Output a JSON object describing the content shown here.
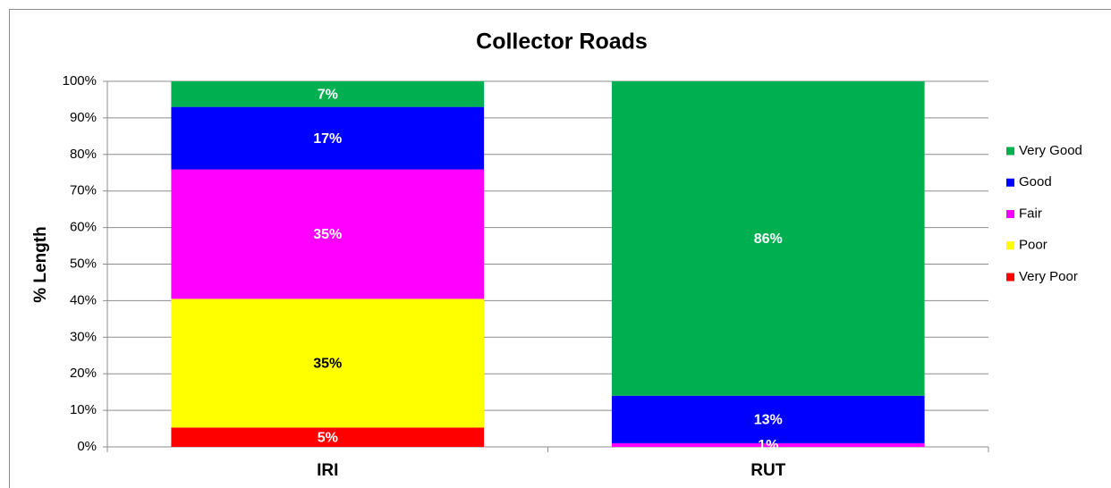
{
  "chart_data": {
    "type": "stacked_bar",
    "title": "Collector Roads",
    "y_label": "% Length",
    "categories": [
      "IRI",
      "RUT"
    ],
    "series": [
      {
        "name": "Very Poor",
        "color": "#ff0000",
        "values": [
          5.3,
          0
        ],
        "value_labels": [
          "5%",
          null
        ]
      },
      {
        "name": "Poor",
        "color": "#ffff00",
        "values": [
          35.2,
          0
        ],
        "value_labels": [
          "35%",
          null
        ]
      },
      {
        "name": "Fair",
        "color": "#ff00ff",
        "values": [
          35.4,
          1
        ],
        "value_labels": [
          "35%",
          "1%"
        ]
      },
      {
        "name": "Good",
        "color": "#0000ff",
        "values": [
          17.1,
          13
        ],
        "value_labels": [
          "17%",
          "13%"
        ]
      },
      {
        "name": "Very Good",
        "color": "#00b050",
        "values": [
          7,
          86
        ],
        "value_labels": [
          "7%",
          "86%"
        ]
      }
    ],
    "ylim": [
      0,
      100
    ],
    "yticks": [
      {
        "value": 0,
        "label": "0%"
      },
      {
        "value": 10,
        "label": "10%"
      },
      {
        "value": 20,
        "label": "20%"
      },
      {
        "value": 30,
        "label": "30%"
      },
      {
        "value": 40,
        "label": "40%"
      },
      {
        "value": 50,
        "label": "50%"
      },
      {
        "value": 60,
        "label": "60%"
      },
      {
        "value": 70,
        "label": "70%"
      },
      {
        "value": 80,
        "label": "80%"
      },
      {
        "value": 90,
        "label": "90%"
      },
      {
        "value": 100,
        "label": "100%"
      }
    ],
    "grid": true,
    "legend": "right"
  }
}
